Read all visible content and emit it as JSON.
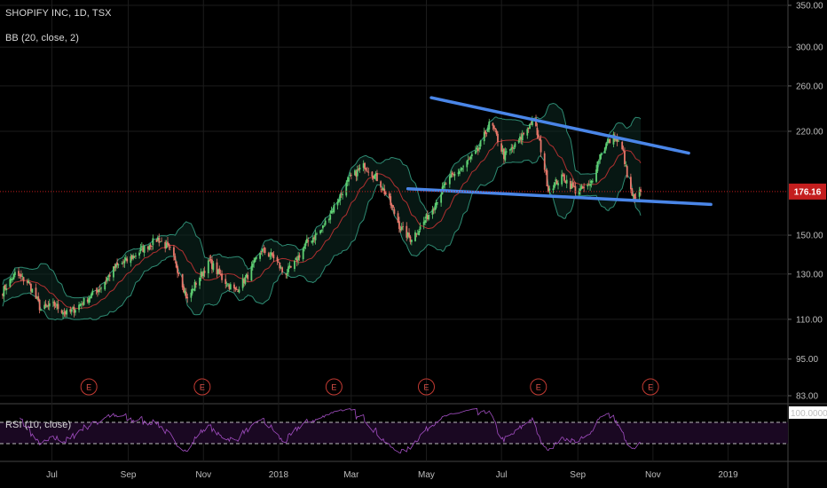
{
  "legend": {
    "title": "SHOPIFY INC, 1D, TSX",
    "indicator": "BB (20, close, 2)",
    "rsi": "RSI (10, close)"
  },
  "colors": {
    "background": "#000000",
    "grid": "#1c1c1c",
    "up_candle": "#5fcf72",
    "down_candle": "#e8776a",
    "bb_band": "#2e8b73",
    "bb_basis": "#b03030",
    "trendline": "#4a86e8",
    "last_price": "#c41e1e",
    "rsi_line": "#a24ec2",
    "earnings": "#c23a32"
  },
  "last_price_label": "176.16",
  "earnings_marker": "E",
  "chart_data": {
    "type": "candlestick",
    "title": "SHOPIFY INC, 1D, TSX",
    "y_axis": {
      "scale": "log",
      "ticks": [
        350.0,
        300.0,
        260.0,
        220.0,
        176.16,
        150.0,
        130.0,
        110.0,
        95.0,
        83.0
      ],
      "tick_labels": [
        "350.00",
        "300.00",
        "260.00",
        "220.00",
        "150.00",
        "130.00",
        "110.00",
        "95.00",
        "83.00"
      ],
      "range": [
        80,
        360
      ]
    },
    "x_axis": {
      "tick_labels": [
        "Jul",
        "Sep",
        "Nov",
        "2018",
        "Mar",
        "May",
        "Jul",
        "Sep",
        "Nov",
        "2019"
      ]
    },
    "price_path": [
      [
        "2017-05-22",
        122
      ],
      [
        "2017-06-01",
        130
      ],
      [
        "2017-06-12",
        126
      ],
      [
        "2017-06-22",
        114
      ],
      [
        "2017-07-03",
        116
      ],
      [
        "2017-07-14",
        112
      ],
      [
        "2017-07-28",
        118
      ],
      [
        "2017-08-10",
        124
      ],
      [
        "2017-08-21",
        133
      ],
      [
        "2017-09-01",
        137
      ],
      [
        "2017-09-14",
        143
      ],
      [
        "2017-09-25",
        148
      ],
      [
        "2017-10-05",
        142
      ],
      [
        "2017-10-12",
        131
      ],
      [
        "2017-10-19",
        118
      ],
      [
        "2017-10-26",
        126
      ],
      [
        "2017-11-06",
        136
      ],
      [
        "2017-11-16",
        128
      ],
      [
        "2017-11-27",
        122
      ],
      [
        "2017-12-08",
        130
      ],
      [
        "2017-12-18",
        142
      ],
      [
        "2017-12-29",
        138
      ],
      [
        "2018-01-05",
        130
      ],
      [
        "2018-01-12",
        133
      ],
      [
        "2018-01-24",
        146
      ],
      [
        "2018-02-05",
        153
      ],
      [
        "2018-02-16",
        168
      ],
      [
        "2018-02-28",
        185
      ],
      [
        "2018-03-12",
        194
      ],
      [
        "2018-03-23",
        184
      ],
      [
        "2018-04-02",
        168
      ],
      [
        "2018-04-10",
        154
      ],
      [
        "2018-04-18",
        148
      ],
      [
        "2018-04-27",
        155
      ],
      [
        "2018-05-07",
        167
      ],
      [
        "2018-05-18",
        183
      ],
      [
        "2018-05-31",
        193
      ],
      [
        "2018-06-12",
        205
      ],
      [
        "2018-06-22",
        228
      ],
      [
        "2018-07-03",
        201
      ],
      [
        "2018-07-13",
        209
      ],
      [
        "2018-07-27",
        230
      ],
      [
        "2018-08-02",
        206
      ],
      [
        "2018-08-08",
        178
      ],
      [
        "2018-08-20",
        186
      ],
      [
        "2018-08-31",
        176
      ],
      [
        "2018-09-11",
        180
      ],
      [
        "2018-09-21",
        207
      ],
      [
        "2018-10-01",
        216
      ],
      [
        "2018-10-08",
        203
      ],
      [
        "2018-10-12",
        180
      ],
      [
        "2018-10-17",
        170
      ],
      [
        "2018-10-22",
        176.16
      ]
    ],
    "trendlines": [
      {
        "from": [
          "2018-05-05",
          249
        ],
        "to": [
          "2018-11-30",
          203
        ]
      },
      {
        "from": [
          "2018-04-16",
          178
        ],
        "to": [
          "2018-12-18",
          168
        ]
      }
    ],
    "earnings_dates": [
      "2017-07-31",
      "2017-10-31",
      "2018-02-15",
      "2018-05-01",
      "2018-07-31",
      "2018-10-30"
    ],
    "rsi": {
      "title": "RSI (10, close)",
      "range": [
        0,
        100
      ],
      "upper": 70,
      "lower": 30,
      "value_label": "100.0000"
    }
  }
}
